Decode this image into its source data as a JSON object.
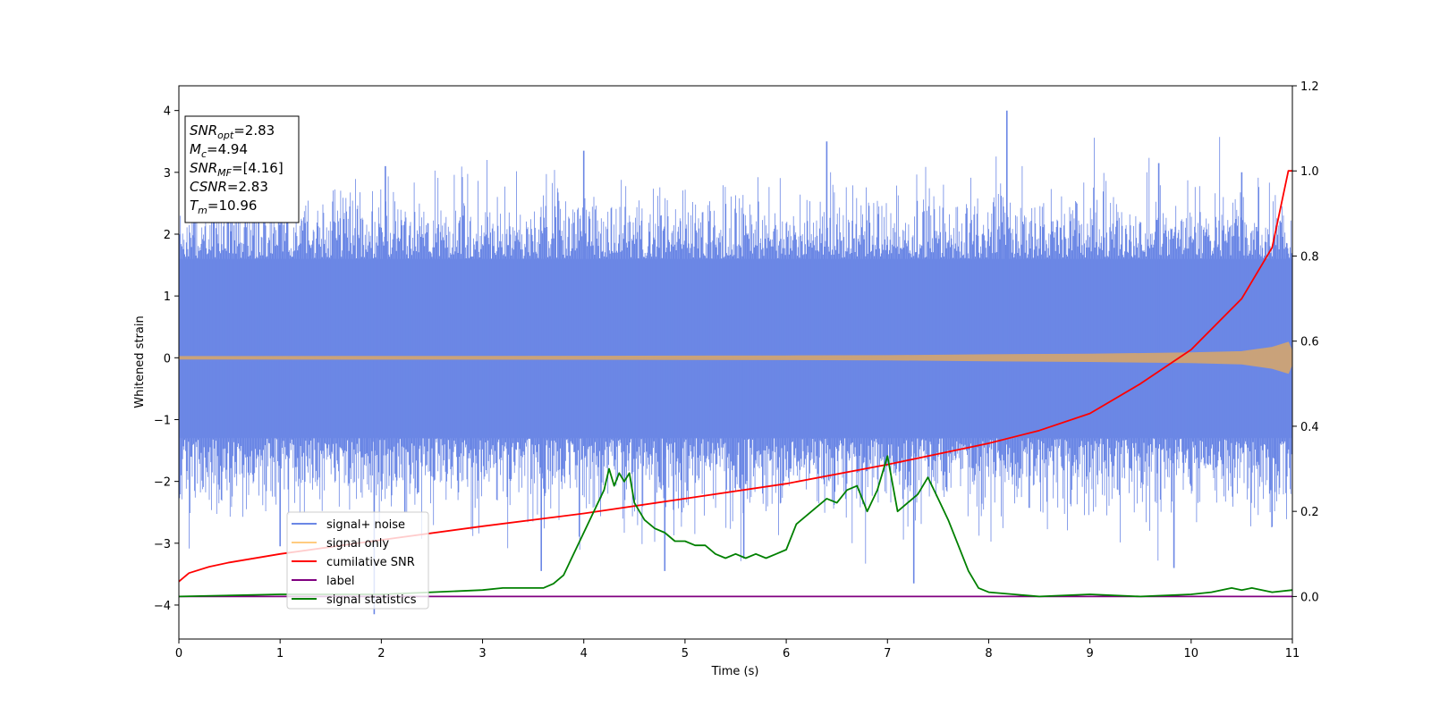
{
  "chart_data": {
    "type": "line",
    "xlabel": "Time (s)",
    "ylabel_left": "Whitened strain",
    "ylabel_right": "",
    "xlim": [
      0,
      11
    ],
    "ylim_left": [
      -4.55,
      4.4
    ],
    "ylim_right": [
      -0.1,
      1.2
    ],
    "x_ticks": [
      "0",
      "1",
      "2",
      "3",
      "4",
      "5",
      "6",
      "7",
      "8",
      "9",
      "10",
      "11"
    ],
    "y_ticks_left": [
      "−4",
      "−3",
      "−2",
      "−1",
      "0",
      "1",
      "2",
      "3",
      "4"
    ],
    "y_ticks_right": [
      "0.0",
      "0.2",
      "0.4",
      "0.6",
      "0.8",
      "1.0",
      "1.2"
    ],
    "grid": false,
    "legend_position": "lower-left",
    "annotation": {
      "position": "top-left",
      "lines": [
        {
          "sym": "SNR",
          "sub": "opt",
          "val": "=2.83"
        },
        {
          "sym": "M",
          "sub": "c",
          "val": "=4.94"
        },
        {
          "sym": "SNR",
          "sub": "MF",
          "val": "=[4.16]"
        },
        {
          "sym": "CSNR",
          "sub": "",
          "val": "=2.83"
        },
        {
          "sym": "T",
          "sub": "m",
          "val": "=10.96"
        }
      ]
    },
    "series": [
      {
        "name": "signal+ noise",
        "axis": "left",
        "color": "#6b87e5",
        "description_values": {
          "band_lower": -1.3,
          "band_upper": 1.6,
          "typical_peak_range": [
            -2.9,
            2.6
          ]
        },
        "notable_spikes": [
          {
            "x": 0.15,
            "y": 2.9
          },
          {
            "x": 1.0,
            "y": -3.05
          },
          {
            "x": 1.93,
            "y": -4.15
          },
          {
            "x": 2.04,
            "y": 3.1
          },
          {
            "x": 3.58,
            "y": -3.45
          },
          {
            "x": 4.0,
            "y": 3.35
          },
          {
            "x": 4.8,
            "y": -3.45
          },
          {
            "x": 5.58,
            "y": -3.25
          },
          {
            "x": 6.4,
            "y": 3.5
          },
          {
            "x": 7.26,
            "y": -3.65
          },
          {
            "x": 8.18,
            "y": 4.0
          },
          {
            "x": 9.68,
            "y": 3.15
          },
          {
            "x": 9.83,
            "y": -3.4
          },
          {
            "x": 10.5,
            "y": 3.0
          }
        ]
      },
      {
        "name": "signal only",
        "axis": "left",
        "color": "#ffcc80",
        "envelope": {
          "x": [
            0,
            4,
            6,
            7,
            8,
            9,
            10,
            10.5,
            10.8,
            10.96,
            11.0
          ],
          "amp": [
            0.02,
            0.025,
            0.03,
            0.035,
            0.05,
            0.06,
            0.08,
            0.1,
            0.17,
            0.25,
            0.1
          ]
        }
      },
      {
        "name": "cumilative SNR",
        "axis": "right",
        "color": "#ff0000",
        "x": [
          0,
          0.1,
          0.3,
          0.5,
          1,
          2,
          3,
          4,
          5,
          6,
          7,
          8,
          8.5,
          9,
          9.5,
          10,
          10.5,
          10.8,
          10.96,
          11.0
        ],
        "y": [
          0.035,
          0.055,
          0.07,
          0.08,
          0.1,
          0.133,
          0.165,
          0.195,
          0.23,
          0.265,
          0.31,
          0.36,
          0.39,
          0.43,
          0.5,
          0.58,
          0.7,
          0.82,
          1.0,
          1.0
        ]
      },
      {
        "name": "label",
        "axis": "right",
        "color": "#800080",
        "x": [
          0,
          11
        ],
        "y": [
          0.0,
          0.0
        ]
      },
      {
        "name": "signal statistics",
        "axis": "right",
        "color": "#008000",
        "x": [
          0,
          1,
          1.5,
          2,
          2.5,
          3,
          3.2,
          3.4,
          3.5,
          3.6,
          3.7,
          3.8,
          3.9,
          4.0,
          4.1,
          4.2,
          4.25,
          4.3,
          4.35,
          4.4,
          4.45,
          4.5,
          4.6,
          4.7,
          4.8,
          4.9,
          5.0,
          5.1,
          5.2,
          5.3,
          5.4,
          5.5,
          5.6,
          5.7,
          5.8,
          5.9,
          6.0,
          6.1,
          6.2,
          6.3,
          6.4,
          6.5,
          6.6,
          6.7,
          6.8,
          6.9,
          7.0,
          7.1,
          7.2,
          7.3,
          7.4,
          7.5,
          7.6,
          7.7,
          7.8,
          7.9,
          8.0,
          8.5,
          9.0,
          9.5,
          10.0,
          10.2,
          10.4,
          10.5,
          10.6,
          10.8,
          11.0
        ],
        "y": [
          0.0,
          0.005,
          0.005,
          0.005,
          0.01,
          0.015,
          0.02,
          0.02,
          0.02,
          0.02,
          0.03,
          0.05,
          0.1,
          0.15,
          0.2,
          0.25,
          0.3,
          0.26,
          0.29,
          0.27,
          0.29,
          0.22,
          0.18,
          0.16,
          0.15,
          0.13,
          0.13,
          0.12,
          0.12,
          0.1,
          0.09,
          0.1,
          0.09,
          0.1,
          0.09,
          0.1,
          0.11,
          0.17,
          0.19,
          0.21,
          0.23,
          0.22,
          0.25,
          0.26,
          0.2,
          0.25,
          0.33,
          0.2,
          0.22,
          0.24,
          0.28,
          0.23,
          0.18,
          0.12,
          0.06,
          0.02,
          0.01,
          0.0,
          0.005,
          0.0,
          0.005,
          0.01,
          0.02,
          0.015,
          0.02,
          0.01,
          0.015
        ]
      }
    ]
  }
}
